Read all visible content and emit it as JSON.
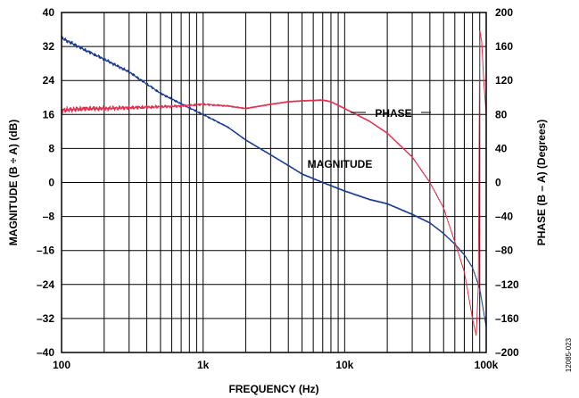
{
  "chart_data": {
    "type": "line",
    "xlabel": "FREQUENCY (Hz)",
    "ylabel_left": "MAGNITUDE (B ÷ A) (dB)",
    "ylabel_right": "PHASE (B – A) (Degrees)",
    "x_scale": "log",
    "xlim": [
      100,
      100000
    ],
    "ylim_left": [
      -40,
      40
    ],
    "ylim_right": [
      -200,
      200
    ],
    "x_ticks": [
      {
        "value": 100,
        "label": "100"
      },
      {
        "value": 1000,
        "label": "1k"
      },
      {
        "value": 10000,
        "label": "10k"
      },
      {
        "value": 100000,
        "label": "100k"
      }
    ],
    "y_ticks_left": [
      "40",
      "32",
      "24",
      "16",
      "8",
      "0",
      "–8",
      "–16",
      "–24",
      "–32",
      "–40"
    ],
    "y_ticks_right": [
      "200",
      "160",
      "120",
      "80",
      "40",
      "0",
      "–40",
      "–80",
      "–120",
      "–160",
      "–200"
    ],
    "grid": true,
    "series": [
      {
        "name": "MAGNITUDE",
        "axis": "left",
        "color": "#1a3a8c",
        "x": [
          100,
          150,
          200,
          300,
          500,
          700,
          1000,
          1500,
          2000,
          3000,
          4000,
          5000,
          7000,
          10000,
          15000,
          20000,
          30000,
          40000,
          50000,
          60000,
          70000,
          80000,
          90000,
          100000
        ],
        "y": [
          34,
          31,
          29,
          26,
          21,
          18.5,
          16,
          13,
          10,
          6.5,
          4,
          2,
          0,
          -2,
          -4,
          -5,
          -7.5,
          -9.5,
          -12,
          -14.5,
          -17,
          -20,
          -25,
          -34
        ]
      },
      {
        "name": "PHASE",
        "axis": "right",
        "color": "#e03050",
        "x": [
          100,
          150,
          200,
          300,
          500,
          700,
          1000,
          1500,
          2000,
          3000,
          4000,
          5000,
          7000,
          8000,
          10000,
          15000,
          20000,
          30000,
          40000,
          50000,
          60000,
          70000,
          80000,
          85000,
          88000,
          90000,
          93000,
          96000,
          100000
        ],
        "y": [
          85,
          87,
          87,
          88,
          89,
          90,
          92,
          90,
          87,
          92,
          95,
          96,
          97,
          95,
          87,
          72,
          58,
          30,
          0,
          -30,
          -70,
          -105,
          -160,
          -180,
          -120,
          180,
          165,
          120,
          80
        ]
      }
    ],
    "annotations": [
      "PHASE",
      "MAGNITUDE"
    ]
  },
  "figure_id": "12085-023"
}
